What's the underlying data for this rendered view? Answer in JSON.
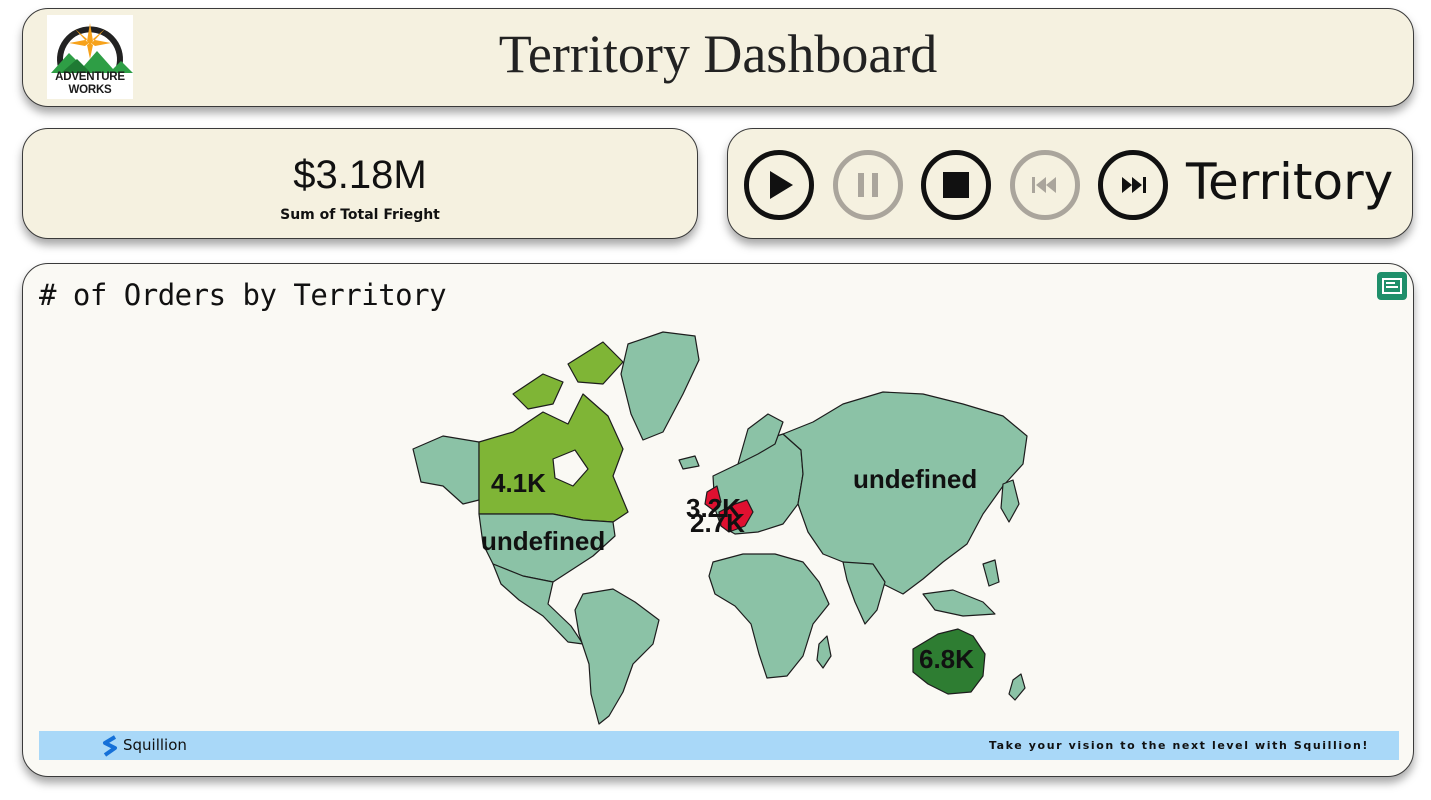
{
  "header": {
    "title": "Territory Dashboard",
    "logo": {
      "line1": "ADVENTURE",
      "line2": "WORKS",
      "icon": "compass-mountain-logo"
    }
  },
  "kpi": {
    "value": "$3.18M",
    "label": "Sum of Total Frieght"
  },
  "player": {
    "buttons": [
      {
        "name": "play",
        "icon": "play-icon",
        "enabled": true
      },
      {
        "name": "pause",
        "icon": "pause-icon",
        "enabled": false
      },
      {
        "name": "stop",
        "icon": "stop-icon",
        "enabled": true
      },
      {
        "name": "previous",
        "icon": "skip-back-icon",
        "enabled": false
      },
      {
        "name": "next",
        "icon": "skip-forward-icon",
        "enabled": true
      }
    ],
    "field_label": "Territory"
  },
  "map": {
    "title": "# of Orders by Territory",
    "focus_icon": "focus-mode-icon",
    "labels": [
      {
        "region": "Canada",
        "text": "4.1K"
      },
      {
        "region": "United States",
        "text": "undefined"
      },
      {
        "region": "Russia",
        "text": "undefined"
      },
      {
        "region": "United Kingdom",
        "text": "3.2K"
      },
      {
        "region": "France",
        "text": "2.7K"
      },
      {
        "region": "Australia",
        "text": "6.8K"
      }
    ],
    "colors": {
      "default_land": "#8bc2a6",
      "canada": "#7fb536",
      "australia": "#2e7d32",
      "europe_highlight": "#e01030",
      "ocean": "#faf9f4"
    }
  },
  "footer": {
    "brand": "Squillion",
    "brand_icon": "squillion-logo",
    "tagline": "Take your vision to the next level with Squillion!",
    "bar_color": "#a9d8f8"
  }
}
